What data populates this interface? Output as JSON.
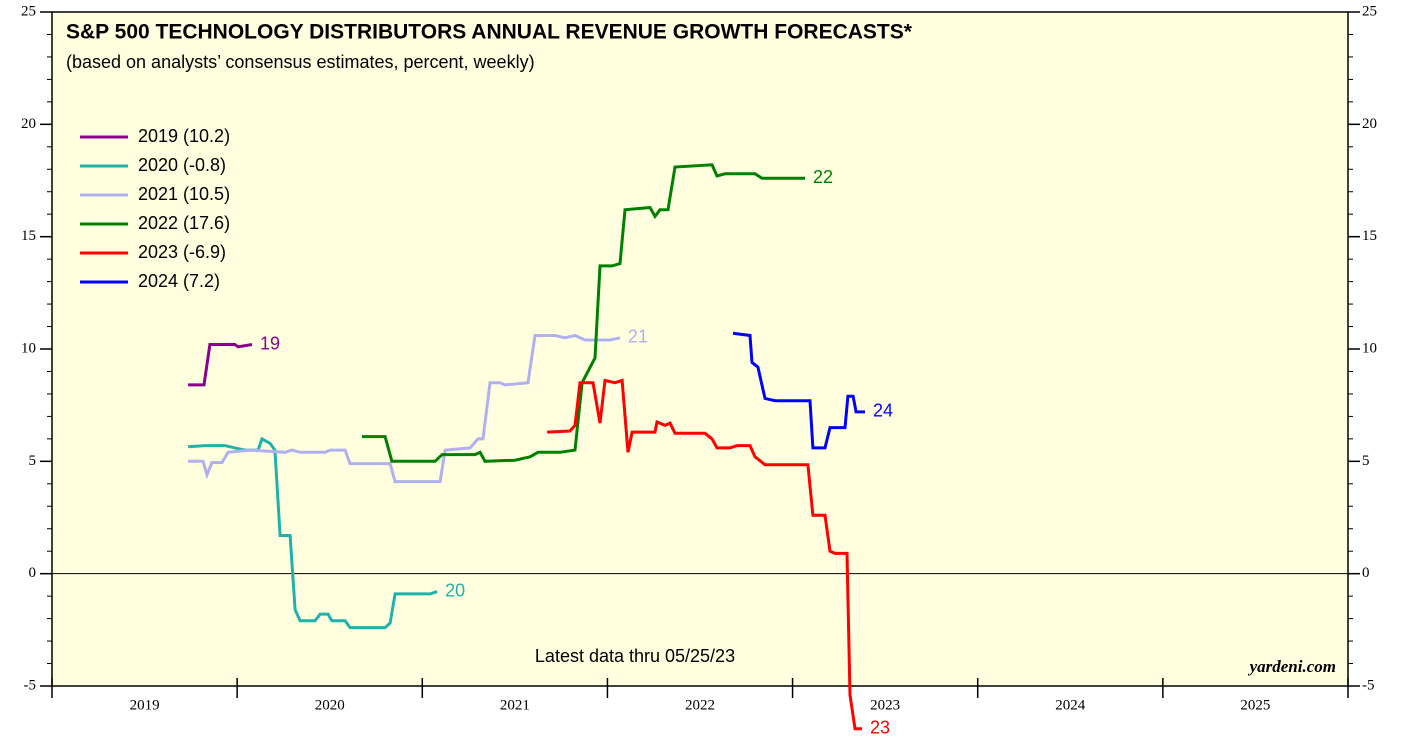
{
  "chart_data": {
    "type": "line",
    "title": "S&P 500 TECHNOLOGY DISTRIBUTORS ANNUAL REVENUE GROWTH FORECASTS*",
    "subtitle": "(based on analysts’ consensus estimates, percent, weekly)",
    "annotation": "Latest data thru  05/25/23",
    "source": "yardeni.com",
    "xlim": [
      2019,
      2026
    ],
    "xticks": [
      2019,
      2020,
      2021,
      2022,
      2023,
      2024,
      2025,
      2026
    ],
    "x_tick_labels": [
      "2019",
      "2020",
      "2021",
      "2022",
      "2023",
      "2024",
      "2025"
    ],
    "ylim": [
      -5,
      25
    ],
    "yticks": [
      -5,
      0,
      5,
      10,
      15,
      20,
      25
    ],
    "zero_line": true,
    "legend": "top-left",
    "series": [
      {
        "name": "2019 (10.2)",
        "label": "19",
        "color": "#8b008b",
        "x": [
          2019.735,
          2019.821,
          2019.853,
          2019.988,
          2020.005,
          2020.08
        ],
        "values": [
          8.4,
          8.4,
          10.2,
          10.2,
          10.1,
          10.2
        ]
      },
      {
        "name": "2020 (-0.8)",
        "label": "20",
        "color": "#20b2aa",
        "x": [
          2019.735,
          2019.826,
          2019.934,
          2019.988,
          2020.042,
          2020.113,
          2020.134,
          2020.178,
          2020.204,
          2020.232,
          2020.286,
          2020.313,
          2020.34,
          2020.421,
          2020.448,
          2020.491,
          2020.512,
          2020.583,
          2020.61,
          2020.799,
          2020.826,
          2020.853,
          2021.042,
          2021.08
        ],
        "values": [
          5.65,
          5.7,
          5.7,
          5.6,
          5.5,
          5.5,
          6.0,
          5.8,
          5.5,
          1.7,
          1.7,
          -1.6,
          -2.1,
          -2.1,
          -1.8,
          -1.8,
          -2.1,
          -2.1,
          -2.4,
          -2.4,
          -2.2,
          -0.9,
          -0.9,
          -0.8
        ]
      },
      {
        "name": "2021 (10.5)",
        "label": "21",
        "color": "#b0b0f0",
        "x": [
          2019.735,
          2019.816,
          2019.837,
          2019.864,
          2019.918,
          2019.951,
          2020.069,
          2020.259,
          2020.296,
          2020.34,
          2020.475,
          2020.502,
          2020.583,
          2020.61,
          2020.826,
          2020.853,
          2021.096,
          2021.123,
          2021.258,
          2021.301,
          2021.328,
          2021.366,
          2021.42,
          2021.447,
          2021.571,
          2021.609,
          2021.717,
          2021.771,
          2021.825,
          2021.879,
          2022.014,
          2022.068
        ],
        "values": [
          5.0,
          5.0,
          4.4,
          4.95,
          4.95,
          5.4,
          5.5,
          5.4,
          5.5,
          5.4,
          5.4,
          5.5,
          5.5,
          4.9,
          4.9,
          4.1,
          4.1,
          5.5,
          5.6,
          6.0,
          6.0,
          8.5,
          8.5,
          8.4,
          8.5,
          10.6,
          10.6,
          10.5,
          10.6,
          10.4,
          10.4,
          10.5
        ]
      },
      {
        "name": "2022 (17.6)",
        "label": "22",
        "color": "#008000",
        "x": [
          2020.674,
          2020.799,
          2020.836,
          2021.069,
          2021.107,
          2021.285,
          2021.312,
          2021.339,
          2021.501,
          2021.582,
          2021.625,
          2021.744,
          2021.825,
          2021.863,
          2021.933,
          2021.96,
          2022.025,
          2022.068,
          2022.095,
          2022.23,
          2022.257,
          2022.284,
          2022.327,
          2022.365,
          2022.565,
          2022.592,
          2022.635,
          2022.797,
          2022.835,
          2023.067
        ],
        "values": [
          6.1,
          6.1,
          5.0,
          5.0,
          5.3,
          5.3,
          5.4,
          5.0,
          5.05,
          5.2,
          5.4,
          5.4,
          5.5,
          8.5,
          9.6,
          13.7,
          13.7,
          13.8,
          16.2,
          16.3,
          15.9,
          16.2,
          16.2,
          18.1,
          18.2,
          17.7,
          17.8,
          17.8,
          17.6,
          17.6
        ]
      },
      {
        "name": "2023 (-6.9)",
        "label": "23",
        "color": "#ff0000",
        "x": [
          2021.674,
          2021.798,
          2021.825,
          2021.852,
          2021.922,
          2021.96,
          2021.987,
          2022.041,
          2022.079,
          2022.111,
          2022.133,
          2022.257,
          2022.268,
          2022.311,
          2022.338,
          2022.365,
          2022.527,
          2022.565,
          2022.592,
          2022.662,
          2022.7,
          2022.77,
          2022.797,
          2022.851,
          2023.083,
          2023.11,
          2023.175,
          2023.202,
          2023.229,
          2023.294,
          2023.31,
          2023.337,
          2023.375
        ],
        "values": [
          6.3,
          6.35,
          6.6,
          8.5,
          8.5,
          6.7,
          8.6,
          8.5,
          8.6,
          5.4,
          6.3,
          6.3,
          6.75,
          6.6,
          6.7,
          6.25,
          6.25,
          6.0,
          5.6,
          5.6,
          5.7,
          5.7,
          5.2,
          4.85,
          4.85,
          2.6,
          2.6,
          1.0,
          0.9,
          0.9,
          -5.4,
          -6.9,
          -6.9
        ]
      },
      {
        "name": "2024 (7.2)",
        "label": "24",
        "color": "#0000ff",
        "x": [
          2022.678,
          2022.77,
          2022.781,
          2022.813,
          2022.851,
          2022.905,
          2023.094,
          2023.11,
          2023.175,
          2023.202,
          2023.283,
          2023.299,
          2023.327,
          2023.343,
          2023.391
        ],
        "values": [
          10.7,
          10.6,
          9.4,
          9.2,
          7.8,
          7.7,
          7.7,
          5.6,
          5.6,
          6.5,
          6.5,
          7.9,
          7.9,
          7.2,
          7.2
        ]
      }
    ]
  }
}
